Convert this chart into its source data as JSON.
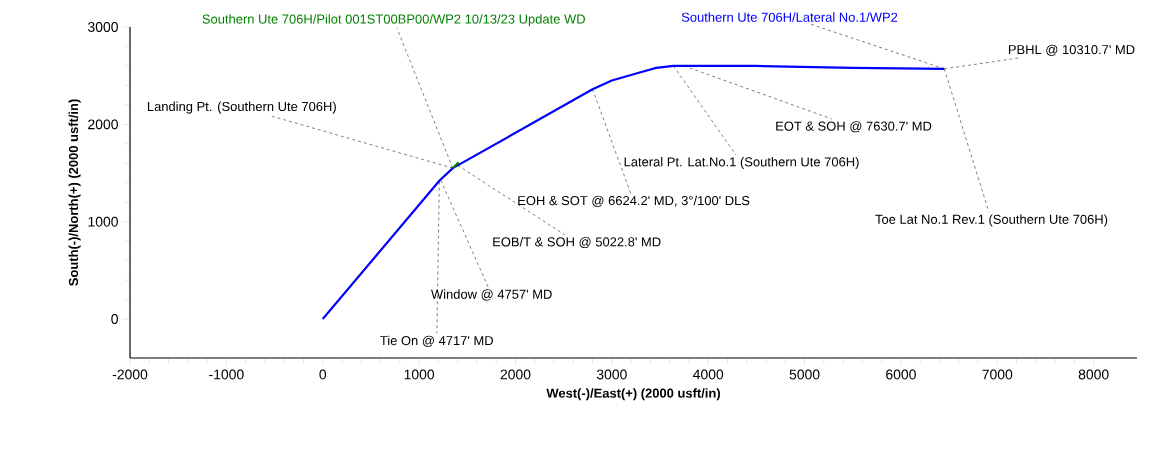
{
  "chart_data": {
    "type": "line",
    "xlabel": "West(-)/East(+)  (2000  usft/in)",
    "ylabel": "South(-)/North(+)  (2000  usft/in)",
    "series": [
      {
        "name": "Southern Ute 706H/Lateral No.1/WP2",
        "color": "#0000ff",
        "x": [
          0,
          1210,
          1350,
          2800,
          3000,
          3280,
          3460,
          3640,
          4500,
          5500,
          6450
        ],
        "values": [
          0,
          1420,
          1550,
          2360,
          2450,
          2530,
          2580,
          2600,
          2600,
          2580,
          2570
        ]
      },
      {
        "name": "Southern Ute 706H/Pilot 001ST00BP00/WP2 10/13/23 Update WD",
        "color": "#008000",
        "x": [
          1350,
          1410
        ],
        "values": [
          1550,
          1610
        ]
      }
    ],
    "annotations": [
      {
        "text": "Landing Pt. (Southern Ute 706H)",
        "x": 1350,
        "y": 1550
      },
      {
        "text": "Tie On @ 4717' MD",
        "x": 1210,
        "y": 1410
      },
      {
        "text": "Window @ 4757' MD",
        "x": 1225,
        "y": 1425
      },
      {
        "text": "EOB/T & SOH @ 5022.8' MD",
        "x": 1400,
        "y": 1580
      },
      {
        "text": "EOH & SOT @ 6624.2' MD, 3°/100' DLS",
        "x": 2800,
        "y": 2360
      },
      {
        "text": "Lateral Pt. Lat.No.1 (Southern Ute 706H)",
        "x": 3640,
        "y": 2600
      },
      {
        "text": "EOT & SOH @ 7630.7' MD",
        "x": 3750,
        "y": 2600
      },
      {
        "text": "PBHL @ 10310.7' MD",
        "x": 6450,
        "y": 2570
      },
      {
        "text": "Toe Lat No.1 Rev.1 (Southern Ute 706H)",
        "x": 6450,
        "y": 2570
      }
    ],
    "xlim": [
      -2000,
      8450
    ],
    "ylim": [
      -400,
      3000
    ],
    "xticks": [
      -2000,
      -1000,
      0,
      1000,
      2000,
      3000,
      4000,
      5000,
      6000,
      7000,
      8000
    ],
    "yticks": [
      0,
      1000,
      2000,
      3000
    ],
    "grid": false,
    "line_style": "solid",
    "marker": "none"
  }
}
